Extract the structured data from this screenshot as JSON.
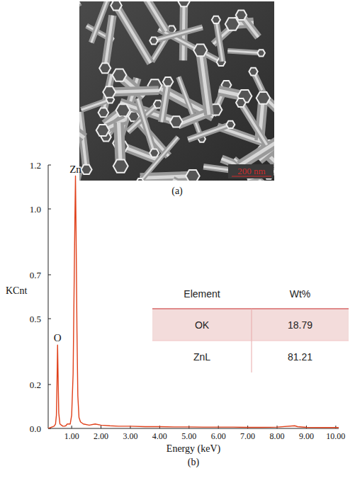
{
  "panel_a": {
    "label": "(a)",
    "scale_bar": "200 nm"
  },
  "panel_b": {
    "label": "(b)"
  },
  "chart_data": {
    "type": "line",
    "x_label": "Energy (keV)",
    "y_label": "KCnt",
    "x": [
      0.2,
      0.3,
      0.4,
      0.45,
      0.48,
      0.5,
      0.52,
      0.54,
      0.56,
      0.6,
      0.65,
      0.7,
      0.75,
      0.8,
      0.85,
      0.95,
      1.0,
      1.05,
      1.08,
      1.11,
      1.13,
      1.15,
      1.18,
      1.21,
      1.25,
      1.3,
      1.4,
      1.6,
      1.8,
      2.0,
      2.3,
      2.6,
      3.0,
      3.5,
      4.0,
      4.5,
      5.0,
      5.5,
      6.0,
      6.5,
      7.0,
      7.5,
      8.0,
      8.6,
      8.7,
      9.0,
      9.6,
      10.1
    ],
    "values": [
      0.0,
      0.005,
      0.01,
      0.02,
      0.06,
      0.2,
      0.38,
      0.22,
      0.07,
      0.02,
      0.015,
      0.01,
      0.01,
      0.012,
      0.02,
      0.02,
      0.06,
      0.25,
      0.6,
      0.95,
      1.15,
      0.9,
      0.45,
      0.15,
      0.05,
      0.03,
      0.02,
      0.015,
      0.02,
      0.015,
      0.012,
      0.01,
      0.01,
      0.008,
      0.008,
      0.007,
      0.007,
      0.006,
      0.006,
      0.006,
      0.005,
      0.005,
      0.006,
      0.012,
      0.008,
      0.005,
      0.004,
      0.004
    ],
    "color": "#e0401a",
    "xlim": [
      0.2,
      10.1
    ],
    "xticks": [
      {
        "value": 1,
        "label": "1.00"
      },
      {
        "value": 2,
        "label": "2.00"
      },
      {
        "value": 3,
        "label": "3.00"
      },
      {
        "value": 4,
        "label": "4.00"
      },
      {
        "value": 5,
        "label": "5.00"
      },
      {
        "value": 6,
        "label": "6.00"
      },
      {
        "value": 7,
        "label": "7.00"
      },
      {
        "value": 8,
        "label": "8.00"
      },
      {
        "value": 9,
        "label": "9.00"
      },
      {
        "value": 10,
        "label": "10.00"
      }
    ],
    "ylim": [
      0,
      1.2
    ],
    "yticks": [
      {
        "value": 0,
        "label": "0.0"
      },
      0.2,
      0.5,
      0.7,
      {
        "value": 1,
        "label": "1.0"
      },
      1.2
    ],
    "grid": false,
    "annotations": [
      {
        "text": "Zn",
        "x": 1.13,
        "y": 1.15
      },
      {
        "text": "O",
        "x": 0.52,
        "y": 0.38
      }
    ],
    "table": {
      "header": [
        "Element",
        "Wt%"
      ],
      "rows": [
        [
          "OK",
          18.79
        ],
        [
          "ZnL",
          81.21
        ]
      ]
    }
  }
}
